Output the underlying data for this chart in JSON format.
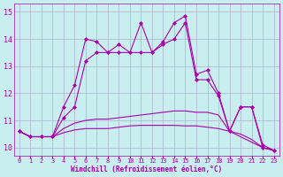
{
  "xlabel": "Windchill (Refroidissement éolien,°C)",
  "xlim": [
    -0.5,
    23.5
  ],
  "ylim": [
    9.7,
    15.3
  ],
  "yticks": [
    10,
    11,
    12,
    13,
    14,
    15
  ],
  "xticks": [
    0,
    1,
    2,
    3,
    4,
    5,
    6,
    7,
    8,
    9,
    10,
    11,
    12,
    13,
    14,
    15,
    16,
    17,
    18,
    19,
    20,
    21,
    22,
    23
  ],
  "bg_color": "#c8eef0",
  "grid_color": "#b0b0cc",
  "line_color": "#aa00aa",
  "series1": [
    10.6,
    10.4,
    10.4,
    10.4,
    11.5,
    12.3,
    14.0,
    13.9,
    13.5,
    13.8,
    13.5,
    14.6,
    13.5,
    13.9,
    14.6,
    14.85,
    12.7,
    12.85,
    12.0,
    10.6,
    11.5,
    11.5,
    10.1,
    9.9
  ],
  "series2": [
    10.6,
    10.4,
    10.4,
    10.4,
    11.1,
    11.5,
    13.2,
    13.5,
    13.5,
    13.5,
    13.5,
    13.5,
    13.5,
    13.8,
    14.0,
    14.6,
    12.5,
    12.5,
    11.9,
    10.6,
    11.5,
    11.5,
    10.0,
    9.9
  ],
  "series3": [
    10.6,
    10.4,
    10.4,
    10.4,
    10.7,
    10.9,
    11.0,
    11.05,
    11.05,
    11.1,
    11.15,
    11.2,
    11.25,
    11.3,
    11.35,
    11.35,
    11.3,
    11.3,
    11.2,
    10.6,
    10.5,
    10.3,
    10.0,
    9.9
  ],
  "series4": [
    10.6,
    10.4,
    10.4,
    10.4,
    10.55,
    10.65,
    10.7,
    10.7,
    10.7,
    10.75,
    10.8,
    10.82,
    10.82,
    10.82,
    10.82,
    10.8,
    10.8,
    10.75,
    10.7,
    10.6,
    10.4,
    10.2,
    10.0,
    9.9
  ]
}
